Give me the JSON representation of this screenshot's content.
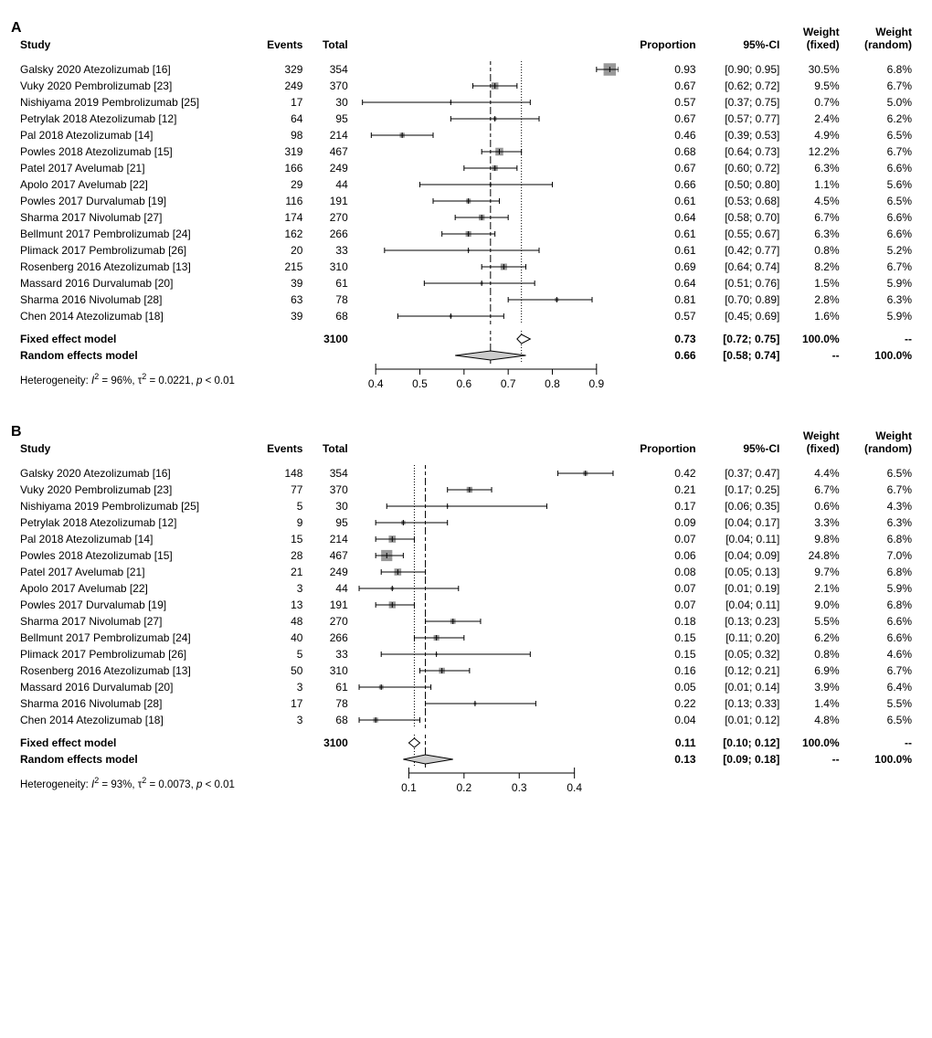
{
  "panels": [
    {
      "label": "A",
      "columns": {
        "study": "Study",
        "events": "Events",
        "total": "Total",
        "proportion": "Proportion",
        "ci": "95%-CI",
        "wfixed": "Weight\n(fixed)",
        "wrandom": "Weight\n(random)"
      },
      "plot": {
        "xmin": 0.35,
        "xmax": 0.95,
        "ticks": [
          0.4,
          0.5,
          0.6,
          0.7,
          0.8,
          0.9
        ],
        "ref_fixed": 0.73,
        "ref_random": 0.66,
        "colors": {
          "box": "#999999",
          "line": "#000000",
          "diamond_fill": "#cccccc",
          "diamond_stroke": "#000000",
          "axis": "#000000"
        },
        "box_base_area": 60
      },
      "rows": [
        {
          "study": "Galsky 2020 Atezolizumab [16]",
          "events": 329,
          "total": 354,
          "prop": 0.93,
          "lo": 0.9,
          "hi": 0.95,
          "wf": 30.5,
          "wr": 6.8
        },
        {
          "study": "Vuky 2020 Pembrolizumab [23]",
          "events": 249,
          "total": 370,
          "prop": 0.67,
          "lo": 0.62,
          "hi": 0.72,
          "wf": 9.5,
          "wr": 6.7
        },
        {
          "study": "Nishiyama 2019 Pembrolizumab [25]",
          "events": 17,
          "total": 30,
          "prop": 0.57,
          "lo": 0.37,
          "hi": 0.75,
          "wf": 0.7,
          "wr": 5.0
        },
        {
          "study": "Petrylak 2018 Atezolizumab [12]",
          "events": 64,
          "total": 95,
          "prop": 0.67,
          "lo": 0.57,
          "hi": 0.77,
          "wf": 2.4,
          "wr": 6.2
        },
        {
          "study": "Pal 2018 Atezolizumab [14]",
          "events": 98,
          "total": 214,
          "prop": 0.46,
          "lo": 0.39,
          "hi": 0.53,
          "wf": 4.9,
          "wr": 6.5
        },
        {
          "study": "Powles 2018 Atezolizumab [15]",
          "events": 319,
          "total": 467,
          "prop": 0.68,
          "lo": 0.64,
          "hi": 0.73,
          "wf": 12.2,
          "wr": 6.7
        },
        {
          "study": "Patel 2017 Avelumab [21]",
          "events": 166,
          "total": 249,
          "prop": 0.67,
          "lo": 0.6,
          "hi": 0.72,
          "wf": 6.3,
          "wr": 6.6
        },
        {
          "study": "Apolo 2017 Avelumab [22]",
          "events": 29,
          "total": 44,
          "prop": 0.66,
          "lo": 0.5,
          "hi": 0.8,
          "wf": 1.1,
          "wr": 5.6
        },
        {
          "study": "Powles 2017 Durvalumab [19]",
          "events": 116,
          "total": 191,
          "prop": 0.61,
          "lo": 0.53,
          "hi": 0.68,
          "wf": 4.5,
          "wr": 6.5
        },
        {
          "study": "Sharma 2017 Nivolumab [27]",
          "events": 174,
          "total": 270,
          "prop": 0.64,
          "lo": 0.58,
          "hi": 0.7,
          "wf": 6.7,
          "wr": 6.6
        },
        {
          "study": "Bellmunt 2017 Pembrolizumab [24]",
          "events": 162,
          "total": 266,
          "prop": 0.61,
          "lo": 0.55,
          "hi": 0.67,
          "wf": 6.3,
          "wr": 6.6
        },
        {
          "study": "Plimack 2017 Pembrolizumab [26]",
          "events": 20,
          "total": 33,
          "prop": 0.61,
          "lo": 0.42,
          "hi": 0.77,
          "wf": 0.8,
          "wr": 5.2
        },
        {
          "study": "Rosenberg 2016 Atezolizumab [13]",
          "events": 215,
          "total": 310,
          "prop": 0.69,
          "lo": 0.64,
          "hi": 0.74,
          "wf": 8.2,
          "wr": 6.7
        },
        {
          "study": "Massard 2016 Durvalumab [20]",
          "events": 39,
          "total": 61,
          "prop": 0.64,
          "lo": 0.51,
          "hi": 0.76,
          "wf": 1.5,
          "wr": 5.9
        },
        {
          "study": "Sharma 2016 Nivolumab [28]",
          "events": 63,
          "total": 78,
          "prop": 0.81,
          "lo": 0.7,
          "hi": 0.89,
          "wf": 2.8,
          "wr": 6.3
        },
        {
          "study": "Chen 2014 Atezolizumab [18]",
          "events": 39,
          "total": 68,
          "prop": 0.57,
          "lo": 0.45,
          "hi": 0.69,
          "wf": 1.6,
          "wr": 5.9
        }
      ],
      "summary": {
        "fixed": {
          "label": "Fixed effect model",
          "total": 3100,
          "prop": 0.73,
          "lo": 0.72,
          "hi": 0.75,
          "wf": "100.0%",
          "wr": "--"
        },
        "random": {
          "label": "Random effects model",
          "prop": 0.66,
          "lo": 0.58,
          "hi": 0.74,
          "wf": "--",
          "wr": "100.0%"
        }
      },
      "heterogeneity": {
        "I2": "96%",
        "tau2": "0.0221",
        "p": "< 0.01"
      }
    },
    {
      "label": "B",
      "columns": {
        "study": "Study",
        "events": "Events",
        "total": "Total",
        "proportion": "Proportion",
        "ci": "95%-CI",
        "wfixed": "Weight\n(fixed)",
        "wrandom": "Weight\n(random)"
      },
      "plot": {
        "xmin": 0.0,
        "xmax": 0.48,
        "ticks": [
          0.1,
          0.2,
          0.3,
          0.4
        ],
        "ref_fixed": 0.11,
        "ref_random": 0.13,
        "colors": {
          "box": "#999999",
          "line": "#000000",
          "diamond_fill": "#cccccc",
          "diamond_stroke": "#000000",
          "axis": "#000000"
        },
        "box_base_area": 60
      },
      "rows": [
        {
          "study": "Galsky 2020 Atezolizumab [16]",
          "events": 148,
          "total": 354,
          "prop": 0.42,
          "lo": 0.37,
          "hi": 0.47,
          "wf": 4.4,
          "wr": 6.5
        },
        {
          "study": "Vuky 2020 Pembrolizumab [23]",
          "events": 77,
          "total": 370,
          "prop": 0.21,
          "lo": 0.17,
          "hi": 0.25,
          "wf": 6.7,
          "wr": 6.7
        },
        {
          "study": "Nishiyama 2019 Pembrolizumab [25]",
          "events": 5,
          "total": 30,
          "prop": 0.17,
          "lo": 0.06,
          "hi": 0.35,
          "wf": 0.6,
          "wr": 4.3
        },
        {
          "study": "Petrylak 2018 Atezolizumab [12]",
          "events": 9,
          "total": 95,
          "prop": 0.09,
          "lo": 0.04,
          "hi": 0.17,
          "wf": 3.3,
          "wr": 6.3
        },
        {
          "study": "Pal 2018 Atezolizumab [14]",
          "events": 15,
          "total": 214,
          "prop": 0.07,
          "lo": 0.04,
          "hi": 0.11,
          "wf": 9.8,
          "wr": 6.8
        },
        {
          "study": "Powles 2018 Atezolizumab [15]",
          "events": 28,
          "total": 467,
          "prop": 0.06,
          "lo": 0.04,
          "hi": 0.09,
          "wf": 24.8,
          "wr": 7.0
        },
        {
          "study": "Patel 2017 Avelumab [21]",
          "events": 21,
          "total": 249,
          "prop": 0.08,
          "lo": 0.05,
          "hi": 0.13,
          "wf": 9.7,
          "wr": 6.8
        },
        {
          "study": "Apolo 2017 Avelumab [22]",
          "events": 3,
          "total": 44,
          "prop": 0.07,
          "lo": 0.01,
          "hi": 0.19,
          "wf": 2.1,
          "wr": 5.9
        },
        {
          "study": "Powles 2017 Durvalumab [19]",
          "events": 13,
          "total": 191,
          "prop": 0.07,
          "lo": 0.04,
          "hi": 0.11,
          "wf": 9.0,
          "wr": 6.8
        },
        {
          "study": "Sharma 2017 Nivolumab [27]",
          "events": 48,
          "total": 270,
          "prop": 0.18,
          "lo": 0.13,
          "hi": 0.23,
          "wf": 5.5,
          "wr": 6.6
        },
        {
          "study": "Bellmunt 2017 Pembrolizumab [24]",
          "events": 40,
          "total": 266,
          "prop": 0.15,
          "lo": 0.11,
          "hi": 0.2,
          "wf": 6.2,
          "wr": 6.6
        },
        {
          "study": "Plimack 2017 Pembrolizumab [26]",
          "events": 5,
          "total": 33,
          "prop": 0.15,
          "lo": 0.05,
          "hi": 0.32,
          "wf": 0.8,
          "wr": 4.6
        },
        {
          "study": "Rosenberg 2016 Atezolizumab [13]",
          "events": 50,
          "total": 310,
          "prop": 0.16,
          "lo": 0.12,
          "hi": 0.21,
          "wf": 6.9,
          "wr": 6.7
        },
        {
          "study": "Massard 2016 Durvalumab [20]",
          "events": 3,
          "total": 61,
          "prop": 0.05,
          "lo": 0.01,
          "hi": 0.14,
          "wf": 3.9,
          "wr": 6.4
        },
        {
          "study": "Sharma 2016 Nivolumab [28]",
          "events": 17,
          "total": 78,
          "prop": 0.22,
          "lo": 0.13,
          "hi": 0.33,
          "wf": 1.4,
          "wr": 5.5
        },
        {
          "study": "Chen 2014 Atezolizumab [18]",
          "events": 3,
          "total": 68,
          "prop": 0.04,
          "lo": 0.01,
          "hi": 0.12,
          "wf": 4.8,
          "wr": 6.5
        }
      ],
      "summary": {
        "fixed": {
          "label": "Fixed effect model",
          "total": 3100,
          "prop": 0.11,
          "lo": 0.1,
          "hi": 0.12,
          "wf": "100.0%",
          "wr": "--"
        },
        "random": {
          "label": "Random effects model",
          "prop": 0.13,
          "lo": 0.09,
          "hi": 0.18,
          "wf": "--",
          "wr": "100.0%"
        }
      },
      "heterogeneity": {
        "I2": "93%",
        "tau2": "0.0073",
        "p": "< 0.01"
      }
    }
  ]
}
